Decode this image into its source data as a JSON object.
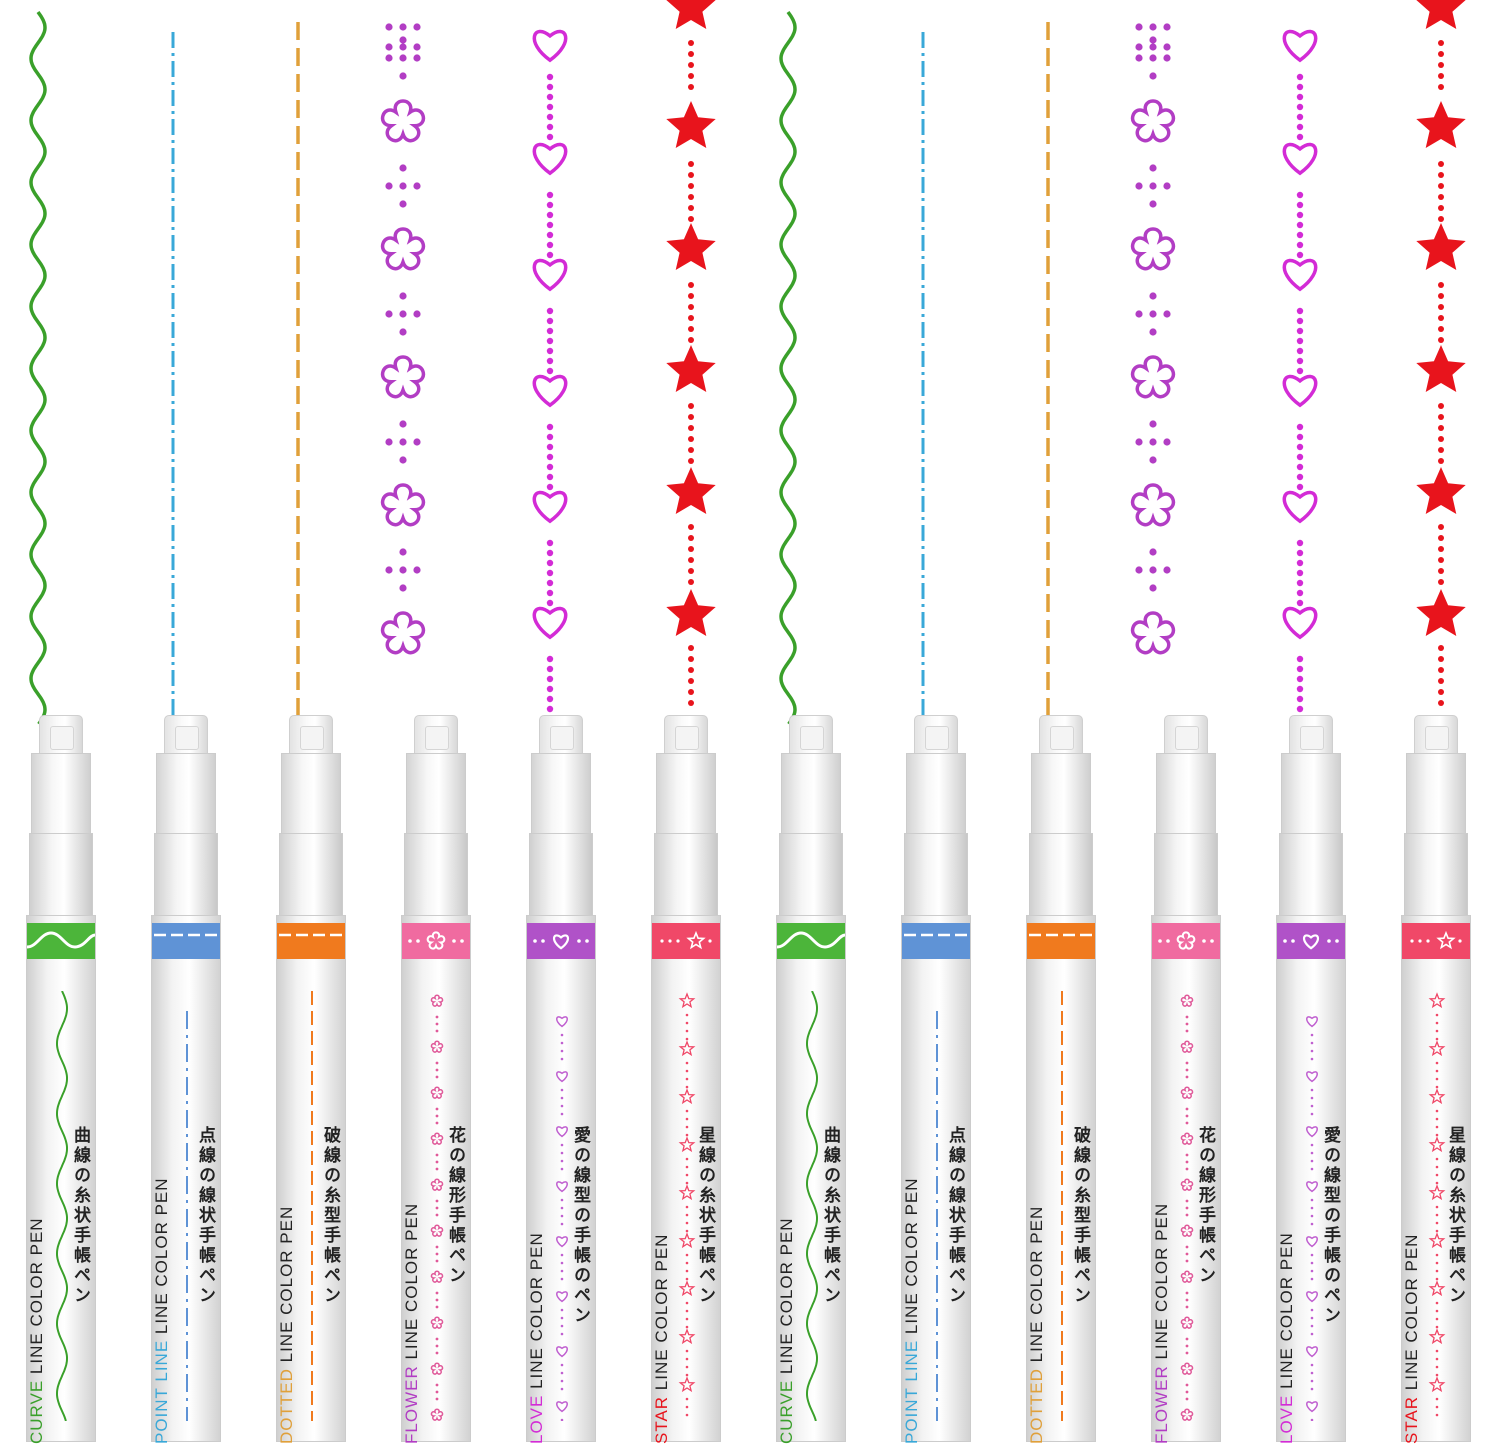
{
  "colors": {
    "green": "#3aa02a",
    "blue": "#39a8d8",
    "orange": "#e0a03a",
    "purple": "#b23dc4",
    "magenta": "#d32bd6",
    "red": "#e8141c"
  },
  "pens": [
    {
      "type": "curve",
      "kind": "CURVE",
      "rest": " LINE COLOR PEN",
      "jp": "曲線の糸状手帳ペン",
      "color": "#3aa02a",
      "band": "#4cb53a"
    },
    {
      "type": "point",
      "kind": "POINT LINE",
      "rest": " LINE COLOR PEN",
      "jp": "点線の線状手帳ペン",
      "color": "#39a8d8",
      "band": "#5f93d6"
    },
    {
      "type": "dotted",
      "kind": "DOTTED",
      "rest": " LINE COLOR PEN",
      "jp": "破線の糸型手帳ペン",
      "color": "#e0a03a",
      "band": "#f07a1e"
    },
    {
      "type": "flower",
      "kind": "FLOWER",
      "rest": " LINE COLOR PEN",
      "jp": "花の線形手帳ペン",
      "color": "#b23dc4",
      "band": "#f06ba0"
    },
    {
      "type": "love",
      "kind": "LOVE",
      "rest": " LINE COLOR PEN",
      "jp": "愛の線型の手帳のペン",
      "color": "#d32bd6",
      "band": "#b052c8"
    },
    {
      "type": "star",
      "kind": "STAR",
      "rest": " LINE COLOR PEN",
      "jp": "星線の糸状手帳ペン",
      "color": "#e8141c",
      "band": "#f04868"
    },
    {
      "type": "curve",
      "kind": "CURVE",
      "rest": " LINE COLOR PEN",
      "jp": "曲線の糸状手帳ペン",
      "color": "#3aa02a",
      "band": "#4cb53a"
    },
    {
      "type": "point",
      "kind": "POINT LINE",
      "rest": " LINE COLOR PEN",
      "jp": "点線の線状手帳ペン",
      "color": "#39a8d8",
      "band": "#5f93d6"
    },
    {
      "type": "dotted",
      "kind": "DOTTED",
      "rest": " LINE COLOR PEN",
      "jp": "破線の糸型手帳ペン",
      "color": "#e0a03a",
      "band": "#f07a1e"
    },
    {
      "type": "flower",
      "kind": "FLOWER",
      "rest": " LINE COLOR PEN",
      "jp": "花の線形手帳ペン",
      "color": "#b23dc4",
      "band": "#f06ba0"
    },
    {
      "type": "love",
      "kind": "LOVE",
      "rest": " LINE COLOR PEN",
      "jp": "愛の線型の手帳のペン",
      "color": "#d32bd6",
      "band": "#b052c8"
    },
    {
      "type": "star",
      "kind": "STAR",
      "rest": " LINE COLOR PEN",
      "jp": "星線の糸状手帳ペン",
      "color": "#e8141c",
      "band": "#f04868"
    }
  ]
}
